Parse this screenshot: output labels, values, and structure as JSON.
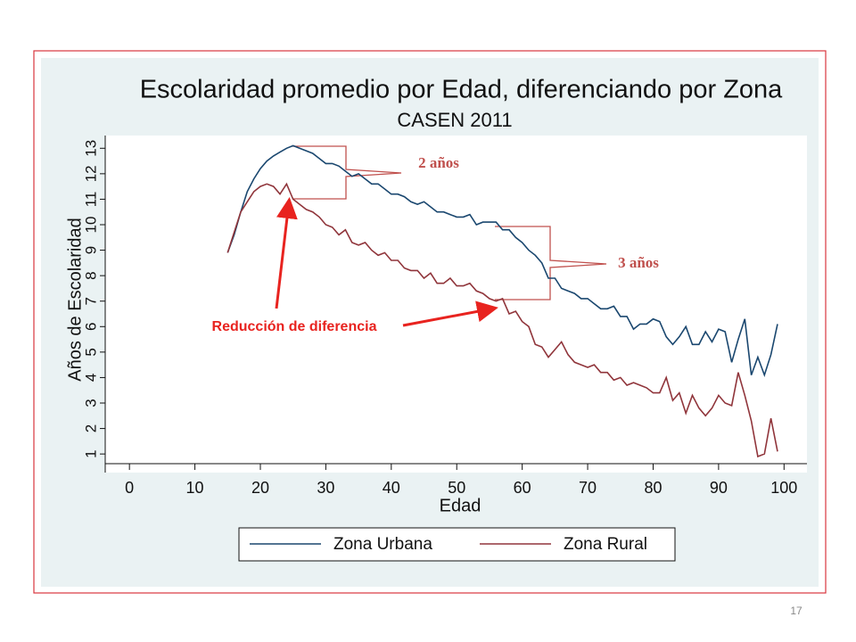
{
  "chart_data": {
    "type": "line",
    "title": "Escolaridad promedio por Edad, diferenciando por Zona",
    "subtitle": "CASEN 2011",
    "xlabel": "Edad",
    "ylabel": "Años de Escolaridad",
    "x": [
      15,
      16,
      17,
      18,
      19,
      20,
      21,
      22,
      23,
      24,
      25,
      26,
      27,
      28,
      29,
      30,
      31,
      32,
      33,
      34,
      35,
      36,
      37,
      38,
      39,
      40,
      41,
      42,
      43,
      44,
      45,
      46,
      47,
      48,
      49,
      50,
      51,
      52,
      53,
      54,
      55,
      56,
      57,
      58,
      59,
      60,
      61,
      62,
      63,
      64,
      65,
      66,
      67,
      68,
      69,
      70,
      71,
      72,
      73,
      74,
      75,
      76,
      77,
      78,
      79,
      80,
      81,
      82,
      83,
      84,
      85,
      86,
      87,
      88,
      89,
      90,
      91,
      92,
      93,
      94,
      95,
      96,
      97,
      98,
      99
    ],
    "series": [
      {
        "name": "Zona Urbana",
        "color": "#1a476f",
        "values": [
          8.9,
          9.6,
          10.5,
          11.3,
          11.8,
          12.2,
          12.5,
          12.7,
          12.85,
          13.0,
          13.1,
          13.0,
          12.9,
          12.8,
          12.6,
          12.4,
          12.4,
          12.3,
          12.1,
          11.9,
          12.0,
          11.8,
          11.6,
          11.6,
          11.4,
          11.2,
          11.2,
          11.1,
          10.9,
          10.8,
          10.9,
          10.7,
          10.5,
          10.5,
          10.4,
          10.3,
          10.3,
          10.4,
          10.0,
          10.1,
          10.1,
          10.1,
          9.8,
          9.8,
          9.5,
          9.3,
          9.0,
          8.8,
          8.5,
          7.9,
          7.9,
          7.5,
          7.4,
          7.3,
          7.1,
          7.1,
          6.9,
          6.7,
          6.7,
          6.8,
          6.4,
          6.4,
          5.9,
          6.1,
          6.1,
          6.3,
          6.2,
          5.6,
          5.3,
          5.6,
          6.0,
          5.3,
          5.3,
          5.8,
          5.4,
          5.9,
          5.8,
          4.6,
          5.5,
          6.3,
          4.1,
          4.8,
          4.1,
          4.9,
          6.1
        ]
      },
      {
        "name": "Zona Rural",
        "color": "#90353b",
        "values": [
          8.9,
          9.7,
          10.5,
          10.9,
          11.3,
          11.5,
          11.6,
          11.5,
          11.2,
          11.6,
          11.0,
          10.8,
          10.6,
          10.5,
          10.3,
          10.0,
          9.9,
          9.6,
          9.8,
          9.3,
          9.2,
          9.3,
          9.0,
          8.8,
          8.9,
          8.6,
          8.6,
          8.3,
          8.2,
          8.2,
          7.9,
          8.1,
          7.7,
          7.7,
          7.9,
          7.6,
          7.6,
          7.7,
          7.4,
          7.3,
          7.1,
          7.0,
          7.1,
          6.5,
          6.6,
          6.2,
          6.0,
          5.3,
          5.2,
          4.8,
          5.1,
          5.4,
          4.9,
          4.6,
          4.5,
          4.4,
          4.5,
          4.2,
          4.2,
          3.9,
          4.0,
          3.7,
          3.8,
          3.7,
          3.6,
          3.4,
          3.4,
          4.0,
          3.1,
          3.4,
          2.6,
          3.3,
          2.8,
          2.5,
          2.8,
          3.3,
          3.0,
          2.9,
          4.2,
          3.3,
          2.3,
          0.9,
          1.0,
          2.4,
          1.1
        ]
      }
    ],
    "xlim": [
      -3.7,
      103.5
    ],
    "ylim": [
      0.27,
      13.5
    ],
    "xticks": [
      0,
      10,
      20,
      30,
      40,
      50,
      60,
      70,
      80,
      90,
      100
    ],
    "yticks": [
      1,
      2,
      3,
      4,
      5,
      6,
      7,
      8,
      9,
      10,
      11,
      12,
      13
    ],
    "annotations": [
      "2 años",
      "3 años",
      "Reducción de diferencia"
    ]
  },
  "page_number": "17"
}
